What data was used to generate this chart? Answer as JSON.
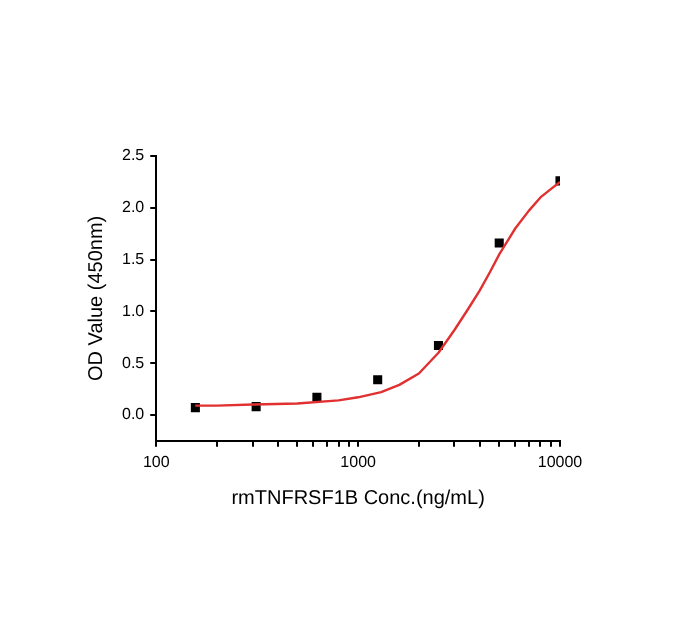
{
  "chart_data": {
    "type": "scatter",
    "xlabel": "rmTNFRSF1B Conc.(ng/mL)",
    "ylabel": "OD Value (450nm)",
    "log": "x",
    "grid": false,
    "marker": "square",
    "xlim": [
      100,
      10000
    ],
    "xticks": [
      100,
      {
        "value": 200,
        "label": null
      },
      {
        "value": 300,
        "label": null
      },
      {
        "value": 400,
        "label": null
      },
      {
        "value": 500,
        "label": null
      },
      {
        "value": 600,
        "label": null
      },
      {
        "value": 700,
        "label": null
      },
      {
        "value": 800,
        "label": null
      },
      {
        "value": 900,
        "label": null
      },
      1000,
      {
        "value": 2000,
        "label": null
      },
      {
        "value": 3000,
        "label": null
      },
      {
        "value": 4000,
        "label": null
      },
      {
        "value": 5000,
        "label": null
      },
      {
        "value": 6000,
        "label": null
      },
      {
        "value": 7000,
        "label": null
      },
      {
        "value": 8000,
        "label": null
      },
      {
        "value": 9000,
        "label": null
      },
      10000
    ],
    "ylim": [
      -0.25,
      2.5
    ],
    "yticks": [
      {
        "value": 0,
        "label": "0.0"
      },
      {
        "value": 0.5,
        "label": "0.5"
      },
      {
        "value": 1,
        "label": "1.0"
      },
      {
        "value": 1.5,
        "label": "1.5"
      },
      {
        "value": 2,
        "label": "2.0"
      },
      {
        "value": 2.5,
        "label": "2.5"
      }
    ],
    "series": [
      {
        "type": "scatter",
        "color": "#000000",
        "x": [
          156.25,
          312.5,
          625,
          1250,
          2500,
          5000,
          10000
        ],
        "values": [
          0.07,
          0.08,
          0.17,
          0.34,
          0.67,
          1.66,
          2.26
        ]
      },
      {
        "type": "line",
        "color": "#e03030",
        "marker": "none",
        "x": [
          156,
          200,
          300,
          500,
          800,
          1000,
          1300,
          1600,
          2000,
          2500,
          3000,
          3500,
          4000,
          4500,
          5000,
          6000,
          7000,
          8000,
          9000,
          10000
        ],
        "values": [
          0.09,
          0.09,
          0.1,
          0.11,
          0.14,
          0.17,
          0.22,
          0.29,
          0.4,
          0.6,
          0.82,
          1.02,
          1.2,
          1.38,
          1.55,
          1.8,
          1.97,
          2.1,
          2.18,
          2.25
        ]
      }
    ]
  }
}
